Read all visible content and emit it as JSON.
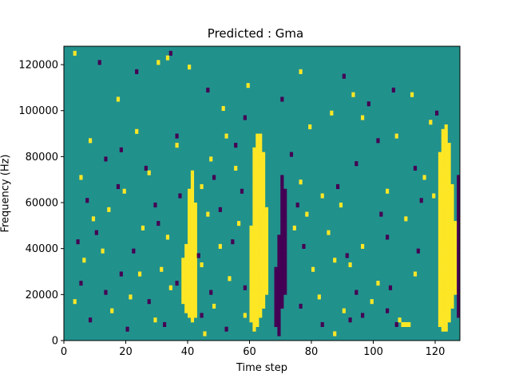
{
  "chart_data": {
    "type": "heatmap",
    "title": "Predicted : Gma",
    "xlabel": "Time step",
    "ylabel": "Frequency (Hz)",
    "xlim": [
      0,
      128
    ],
    "ylim": [
      0,
      128000
    ],
    "x_ticks": [
      0,
      20,
      40,
      60,
      80,
      100,
      120
    ],
    "y_ticks": [
      0,
      20000,
      40000,
      60000,
      80000,
      100000,
      120000
    ],
    "y_tick_labels": [
      "0",
      "20000",
      "40000",
      "60000",
      "80000",
      "100000",
      "120000"
    ],
    "n_time_steps": 128,
    "n_freq_bins": 64,
    "colormap": "viridis",
    "value_levels": [
      -1,
      0,
      1
    ],
    "level_colors": [
      "#440154",
      "#21918c",
      "#fde725"
    ],
    "background_value": 0,
    "high_value_column_runs": [
      {
        "t": 38,
        "f_start": 16000,
        "f_end": 34000
      },
      {
        "t": 39,
        "f_start": 12000,
        "f_end": 40000
      },
      {
        "t": 40,
        "f_start": 10000,
        "f_end": 64000
      },
      {
        "t": 41,
        "f_start": 8000,
        "f_end": 72000
      },
      {
        "t": 42,
        "f_start": 10000,
        "f_end": 58000
      },
      {
        "t": 60,
        "f_start": 8000,
        "f_end": 48000
      },
      {
        "t": 61,
        "f_start": 4000,
        "f_end": 82000
      },
      {
        "t": 62,
        "f_start": 6000,
        "f_end": 88000
      },
      {
        "t": 63,
        "f_start": 10000,
        "f_end": 88000
      },
      {
        "t": 64,
        "f_start": 14000,
        "f_end": 80000
      },
      {
        "t": 65,
        "f_start": 20000,
        "f_end": 56000
      },
      {
        "t": 121,
        "f_start": 6000,
        "f_end": 80000
      },
      {
        "t": 122,
        "f_start": 4000,
        "f_end": 90000
      },
      {
        "t": 123,
        "f_start": 4000,
        "f_end": 92000
      },
      {
        "t": 124,
        "f_start": 8000,
        "f_end": 84000
      },
      {
        "t": 125,
        "f_start": 14000,
        "f_end": 66000
      },
      {
        "t": 126,
        "f_start": 20000,
        "f_end": 50000
      }
    ],
    "low_value_column_runs": [
      {
        "t": 68,
        "f_start": 6000,
        "f_end": 30000
      },
      {
        "t": 69,
        "f_start": 2000,
        "f_end": 44000
      },
      {
        "t": 70,
        "f_start": 14000,
        "f_end": 70000
      },
      {
        "t": 71,
        "f_start": 20000,
        "f_end": 64000
      },
      {
        "t": 127,
        "f_start": 24000,
        "f_end": 70000
      },
      {
        "t": 128,
        "f_start": 10000,
        "f_end": 68000
      }
    ],
    "scattered_high_cells": [
      [
        3,
        124000
      ],
      [
        17,
        104000
      ],
      [
        30,
        120000
      ],
      [
        33,
        122000
      ],
      [
        40,
        118000
      ],
      [
        51,
        100000
      ],
      [
        59,
        110000
      ],
      [
        76,
        116000
      ],
      [
        86,
        98000
      ],
      [
        93,
        106000
      ],
      [
        8,
        86000
      ],
      [
        23,
        90000
      ],
      [
        36,
        84000
      ],
      [
        47,
        78000
      ],
      [
        52,
        88000
      ],
      [
        79,
        92000
      ],
      [
        96,
        96000
      ],
      [
        107,
        88000
      ],
      [
        118,
        94000
      ],
      [
        112,
        106000
      ],
      [
        5,
        70000
      ],
      [
        19,
        64000
      ],
      [
        27,
        72000
      ],
      [
        44,
        66000
      ],
      [
        55,
        74000
      ],
      [
        76,
        68000
      ],
      [
        83,
        62000
      ],
      [
        89,
        58000
      ],
      [
        104,
        64000
      ],
      [
        116,
        70000
      ],
      [
        9,
        52000
      ],
      [
        14,
        56000
      ],
      [
        25,
        48000
      ],
      [
        33,
        44000
      ],
      [
        46,
        54000
      ],
      [
        56,
        50000
      ],
      [
        78,
        54000
      ],
      [
        85,
        46000
      ],
      [
        96,
        40000
      ],
      [
        110,
        52000
      ],
      [
        6,
        34000
      ],
      [
        12,
        38000
      ],
      [
        24,
        28000
      ],
      [
        31,
        30000
      ],
      [
        44,
        32000
      ],
      [
        53,
        26000
      ],
      [
        80,
        30000
      ],
      [
        92,
        32000
      ],
      [
        101,
        24000
      ],
      [
        113,
        28000
      ],
      [
        3,
        16000
      ],
      [
        15,
        12000
      ],
      [
        21,
        18000
      ],
      [
        34,
        22000
      ],
      [
        48,
        14000
      ],
      [
        58,
        10000
      ],
      [
        82,
        18000
      ],
      [
        90,
        12000
      ],
      [
        99,
        16000
      ],
      [
        108,
        8000
      ],
      [
        109,
        6000
      ],
      [
        110,
        6000
      ],
      [
        111,
        6000
      ],
      [
        45,
        2000
      ],
      [
        87,
        2000
      ],
      [
        29,
        8000
      ],
      [
        50,
        40000
      ],
      [
        74,
        48000
      ],
      [
        87,
        34000
      ],
      [
        119,
        62000
      ]
    ],
    "scattered_low_cells": [
      [
        11,
        120000
      ],
      [
        23,
        116000
      ],
      [
        34,
        124000
      ],
      [
        46,
        108000
      ],
      [
        58,
        96000
      ],
      [
        70,
        104000
      ],
      [
        90,
        114000
      ],
      [
        98,
        102000
      ],
      [
        106,
        108000
      ],
      [
        120,
        98000
      ],
      [
        13,
        78000
      ],
      [
        18,
        82000
      ],
      [
        26,
        74000
      ],
      [
        36,
        88000
      ],
      [
        48,
        70000
      ],
      [
        55,
        84000
      ],
      [
        73,
        80000
      ],
      [
        94,
        76000
      ],
      [
        101,
        86000
      ],
      [
        113,
        74000
      ],
      [
        7,
        60000
      ],
      [
        17,
        66000
      ],
      [
        29,
        58000
      ],
      [
        37,
        62000
      ],
      [
        50,
        56000
      ],
      [
        57,
        64000
      ],
      [
        75,
        58000
      ],
      [
        88,
        66000
      ],
      [
        102,
        54000
      ],
      [
        115,
        60000
      ],
      [
        4,
        42000
      ],
      [
        10,
        46000
      ],
      [
        22,
        38000
      ],
      [
        30,
        50000
      ],
      [
        43,
        36000
      ],
      [
        54,
        42000
      ],
      [
        77,
        40000
      ],
      [
        91,
        36000
      ],
      [
        104,
        44000
      ],
      [
        114,
        38000
      ],
      [
        5,
        24000
      ],
      [
        13,
        20000
      ],
      [
        18,
        28000
      ],
      [
        27,
        16000
      ],
      [
        36,
        24000
      ],
      [
        47,
        20000
      ],
      [
        58,
        22000
      ],
      [
        76,
        14000
      ],
      [
        94,
        20000
      ],
      [
        105,
        22000
      ],
      [
        8,
        8000
      ],
      [
        20,
        4000
      ],
      [
        32,
        6000
      ],
      [
        44,
        10000
      ],
      [
        52,
        4000
      ],
      [
        83,
        6000
      ],
      [
        92,
        8000
      ],
      [
        96,
        10000
      ],
      [
        104,
        12000
      ],
      [
        107,
        6000
      ]
    ]
  }
}
